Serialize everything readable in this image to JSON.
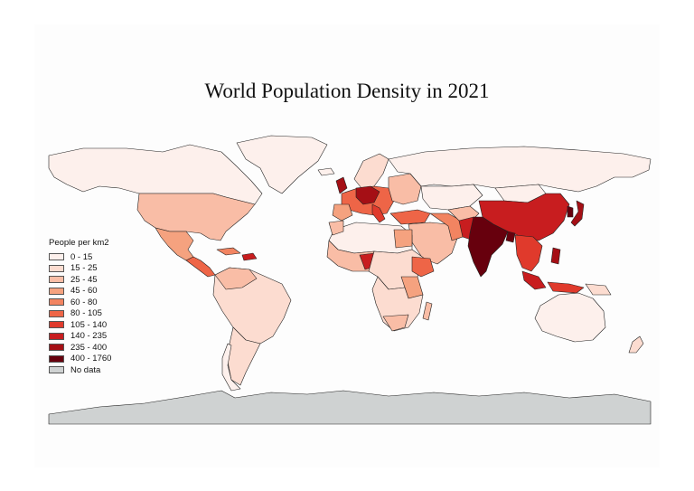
{
  "title": "World Population Density in 2021",
  "legend": {
    "title": "People per km2",
    "classes": [
      {
        "label": "0 - 15",
        "color": "#fdf0ec"
      },
      {
        "label": "15 - 25",
        "color": "#fcdcd0"
      },
      {
        "label": "25 - 45",
        "color": "#f9bda6"
      },
      {
        "label": "45 - 60",
        "color": "#f5a27f"
      },
      {
        "label": "60 - 80",
        "color": "#f28461"
      },
      {
        "label": "80 - 105",
        "color": "#ee6547"
      },
      {
        "label": "105 - 140",
        "color": "#e03a2c"
      },
      {
        "label": "140 - 235",
        "color": "#c81d1f"
      },
      {
        "label": "235 - 400",
        "color": "#a50f15"
      },
      {
        "label": "400 - 1760",
        "color": "#67000d"
      },
      {
        "label": "No data",
        "color": "#cfd2d2"
      }
    ]
  }
}
